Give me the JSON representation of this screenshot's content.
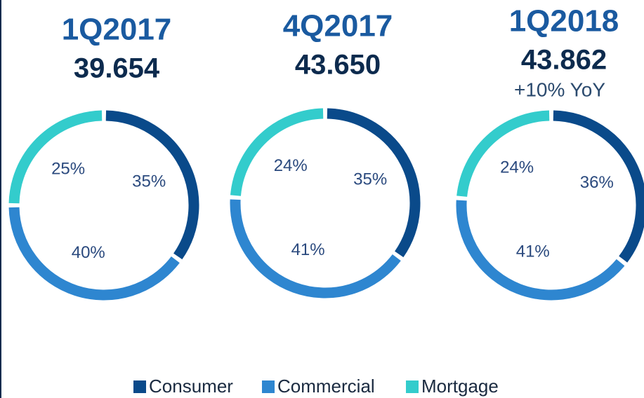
{
  "chart_data": [
    {
      "type": "donut",
      "title": "1Q2017",
      "subtitle": "39.654",
      "categories": [
        "Consumer",
        "Commercial",
        "Mortgage"
      ],
      "values": [
        35,
        40,
        25
      ],
      "value_labels": [
        "35%",
        "40%",
        "25%"
      ],
      "colors": [
        "#0a4a8a",
        "#2e86d0",
        "#33cccc"
      ]
    },
    {
      "type": "donut",
      "title": "4Q2017",
      "subtitle": "43.650",
      "categories": [
        "Consumer",
        "Commercial",
        "Mortgage"
      ],
      "values": [
        35,
        41,
        24
      ],
      "value_labels": [
        "35%",
        "41%",
        "24%"
      ],
      "colors": [
        "#0a4a8a",
        "#2e86d0",
        "#33cccc"
      ]
    },
    {
      "type": "donut",
      "title": "1Q2018",
      "subtitle": "43.862",
      "annotation": "+10% YoY",
      "categories": [
        "Consumer",
        "Commercial",
        "Mortgage"
      ],
      "values": [
        36,
        41,
        24
      ],
      "value_labels": [
        "36%",
        "41%",
        "24%"
      ],
      "colors": [
        "#0a4a8a",
        "#2e86d0",
        "#33cccc"
      ]
    }
  ]
}
